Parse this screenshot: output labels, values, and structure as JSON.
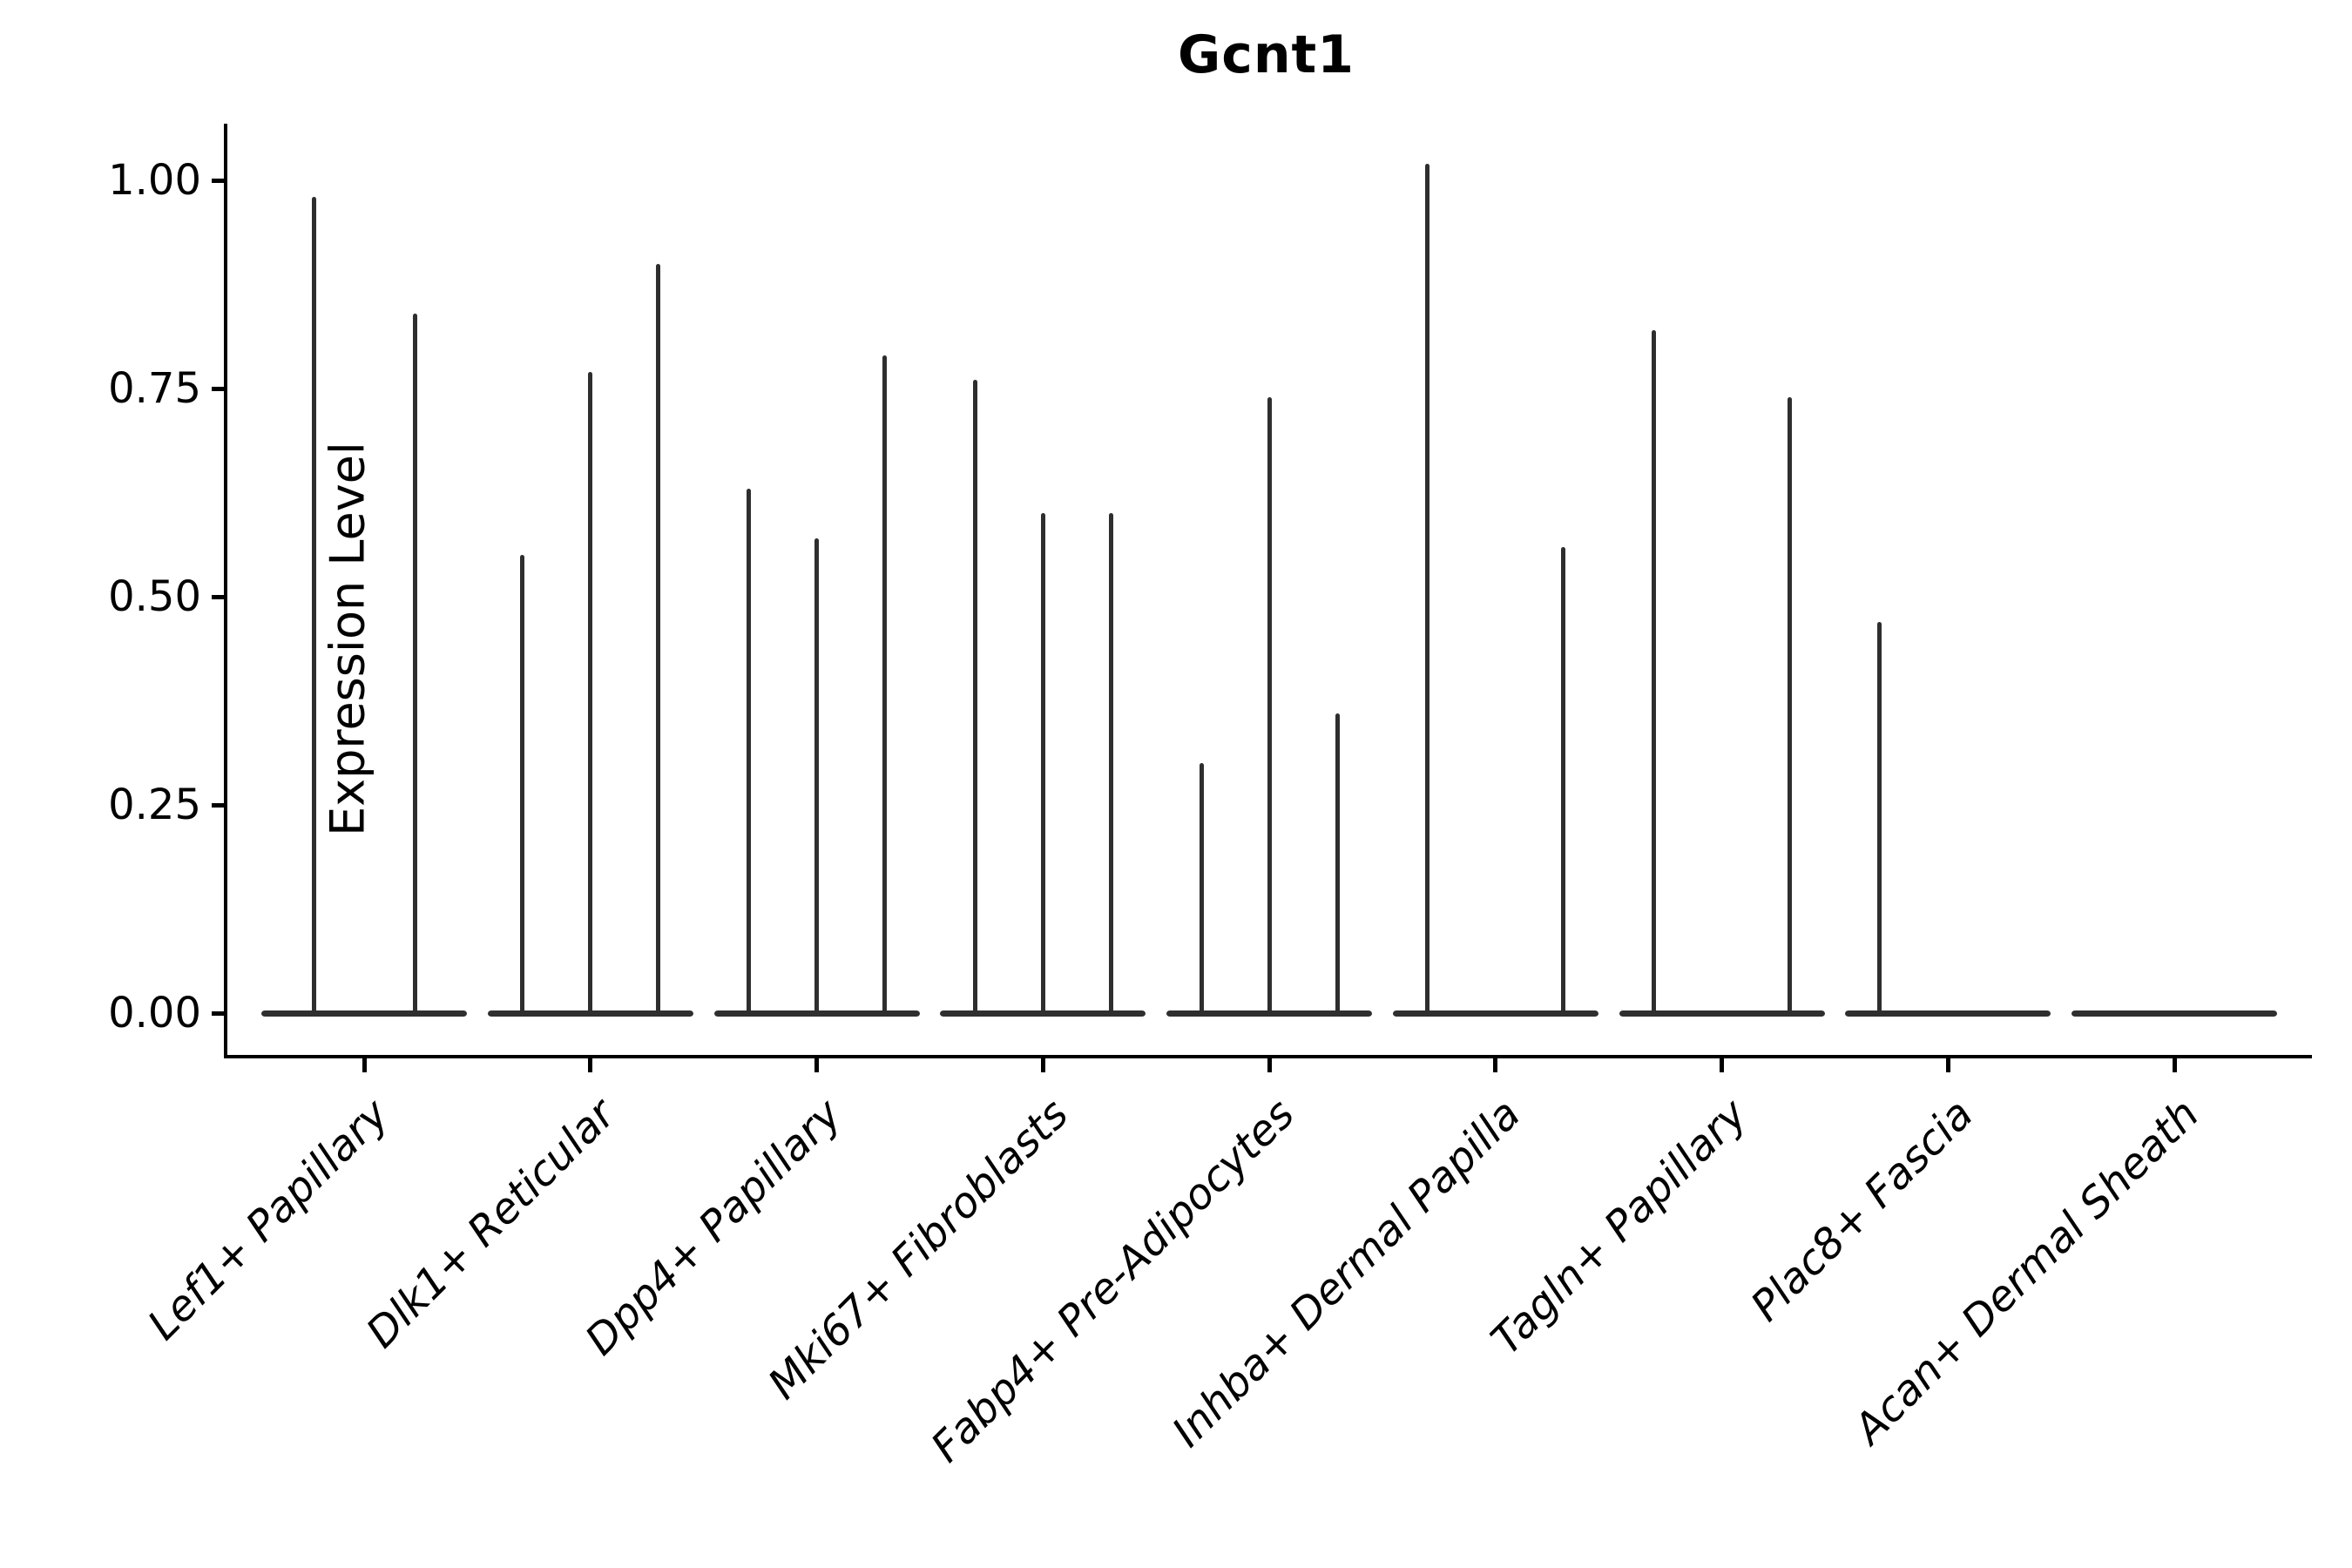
{
  "title": "Gcnt1",
  "y_axis": {
    "label": "Expression Level",
    "tick_labels": [
      "1.00",
      "0.75",
      "0.50",
      "0.25",
      "0.00"
    ]
  },
  "chart_data": {
    "type": "violin",
    "title": "Gcnt1",
    "xlabel": "",
    "ylabel": "Expression Level",
    "ylim": [
      -0.05,
      1.07
    ],
    "yticks": [
      0.0,
      0.25,
      0.5,
      0.75,
      1.0
    ],
    "ytick_labels": [
      "0.00",
      "0.25",
      "0.50",
      "0.75",
      "1.00"
    ],
    "grid": false,
    "legend": false,
    "categories": [
      "Lef1+ Papillary",
      "Dlk1+ Reticular",
      "Dpp4+ Papillary",
      "Mki67+ Fibroblasts",
      "Fabp4+ Pre-Adipocytes",
      "Inhba+ Dermal Papilla",
      "Tagln+ Papillary",
      "Plac8+ Fascia",
      "Acan+ Dermal Sheath"
    ],
    "groups": [
      {
        "category": "Lef1+ Papillary",
        "violins": [
          {
            "dx": -58,
            "peak": 0.98
          },
          {
            "dx": 58,
            "peak": 0.84
          }
        ]
      },
      {
        "category": "Dlk1+ Reticular",
        "violins": [
          {
            "dx": -78,
            "peak": 0.55
          },
          {
            "dx": 0,
            "peak": 0.77
          },
          {
            "dx": 78,
            "peak": 0.9
          }
        ]
      },
      {
        "category": "Dpp4+ Papillary",
        "violins": [
          {
            "dx": -78,
            "peak": 0.63
          },
          {
            "dx": 0,
            "peak": 0.57
          },
          {
            "dx": 78,
            "peak": 0.79
          }
        ]
      },
      {
        "category": "Mki67+ Fibroblasts",
        "violins": [
          {
            "dx": -78,
            "peak": 0.76
          },
          {
            "dx": 0,
            "peak": 0.6
          },
          {
            "dx": 78,
            "peak": 0.6
          }
        ]
      },
      {
        "category": "Fabp4+ Pre-Adipocytes",
        "violins": [
          {
            "dx": -78,
            "peak": 0.3
          },
          {
            "dx": 0,
            "peak": 0.74
          },
          {
            "dx": 78,
            "peak": 0.36
          }
        ]
      },
      {
        "category": "Inhba+ Dermal Papilla",
        "violins": [
          {
            "dx": -78,
            "peak": 1.02
          },
          {
            "dx": 0,
            "peak": 0.0
          },
          {
            "dx": 78,
            "peak": 0.56
          }
        ]
      },
      {
        "category": "Tagln+ Papillary",
        "violins": [
          {
            "dx": -78,
            "peak": 0.82
          },
          {
            "dx": 0,
            "peak": 0.0
          },
          {
            "dx": 78,
            "peak": 0.74
          }
        ]
      },
      {
        "category": "Plac8+ Fascia",
        "violins": [
          {
            "dx": -79,
            "peak": 0.47
          },
          {
            "dx": 0,
            "peak": 0.0
          },
          {
            "dx": 79,
            "peak": 0.0
          }
        ]
      },
      {
        "category": "Acan+ Dermal Sheath",
        "violins": [
          {
            "dx": -79,
            "peak": 0.0
          },
          {
            "dx": 0,
            "peak": 0.0
          },
          {
            "dx": 79,
            "peak": 0.0
          }
        ]
      }
    ],
    "colors": {
      "violin": "#2e2e2e",
      "axis": "#000000",
      "text": "#000000",
      "background": "#ffffff"
    }
  }
}
